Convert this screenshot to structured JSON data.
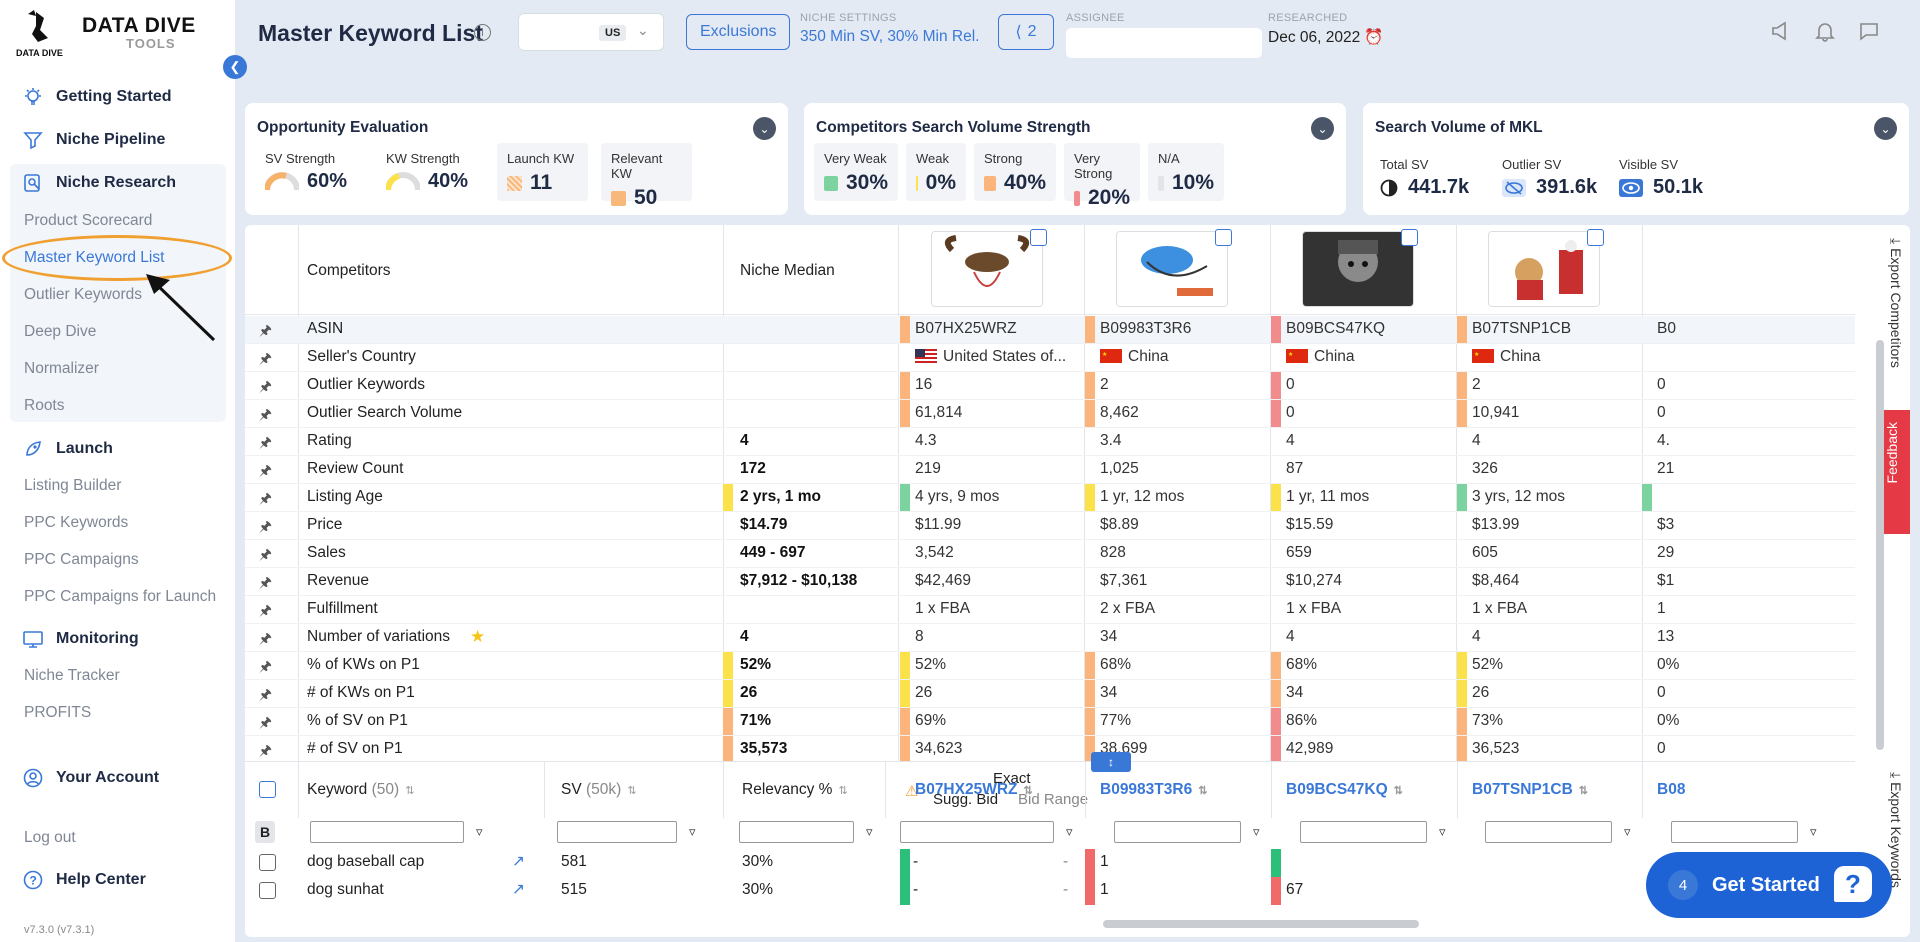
{
  "logo": {
    "line1": "DATA DIVE",
    "line2": "TOOLS"
  },
  "nav": {
    "getting_started": "Getting Started",
    "niche_pipeline": "Niche Pipeline",
    "niche_research": "Niche Research",
    "research_items": [
      "Product Scorecard",
      "Master Keyword List",
      "Outlier Keywords",
      "Deep Dive",
      "Normalizer",
      "Roots"
    ],
    "launch": "Launch",
    "launch_items": [
      "Listing Builder",
      "PPC Keywords",
      "PPC Campaigns",
      "PPC Campaigns for Launch"
    ],
    "monitoring": "Monitoring",
    "monitoring_items": [
      "Niche Tracker",
      "PROFITS"
    ],
    "your_account": "Your Account",
    "log_out": "Log out",
    "help_center": "Help Center",
    "version": "v7.3.0 (v7.3.1)"
  },
  "topbar": {
    "title": "Master Keyword List",
    "marketplace": "US",
    "exclusions": "Exclusions",
    "niche_settings_cap": "NICHE SETTINGS",
    "niche_settings_val": "350 Min SV, 30% Min Rel.",
    "share_count": "2",
    "assignee_cap": "ASSIGNEE",
    "researched_cap": "RESEARCHED",
    "researched_val": "Dec 06, 2022"
  },
  "opportunity": {
    "title": "Opportunity Evaluation",
    "sv_label": "SV Strength",
    "sv_val": "60%",
    "kw_label": "KW Strength",
    "kw_val": "40%",
    "launch_label": "Launch KW",
    "launch_val": "11",
    "relevant_label": "Relevant KW",
    "relevant_val": "50"
  },
  "competitors_sv": {
    "title": "Competitors Search Volume Strength",
    "tiles": [
      {
        "label": "Very Weak",
        "val": "30%",
        "color": "#7dd3a0"
      },
      {
        "label": "Weak",
        "val": "0%",
        "color": "#fbe24a"
      },
      {
        "label": "Strong",
        "val": "40%",
        "color": "#fbb57c"
      },
      {
        "label": "Very Strong",
        "val": "20%",
        "color": "#f28b8b"
      },
      {
        "label": "N/A",
        "val": "10%",
        "color": "#e2e4e8"
      }
    ]
  },
  "mkl_sv": {
    "title": "Search Volume of MKL",
    "total_label": "Total SV",
    "total_val": "441.7k",
    "outlier_label": "Outlier SV",
    "outlier_val": "391.6k",
    "visible_label": "Visible SV",
    "visible_val": "50.1k"
  },
  "table": {
    "competitors_header": "Competitors",
    "median_header": "Niche Median",
    "rows": [
      {
        "name": "ASIN",
        "median": "",
        "cells": [
          "B07HX25WRZ",
          "B09983T3R6",
          "B09BCS47KQ",
          "B07TSNP1CB",
          "B0"
        ]
      },
      {
        "name": "Seller's Country",
        "median": "",
        "cells": [
          "United States of...",
          "China",
          "China",
          "China",
          ""
        ]
      },
      {
        "name": "Outlier Keywords",
        "median": "",
        "cells": [
          "16",
          "2",
          "0",
          "2",
          "0"
        ]
      },
      {
        "name": "Outlier Search Volume",
        "median": "",
        "cells": [
          "61,814",
          "8,462",
          "0",
          "10,941",
          "0"
        ]
      },
      {
        "name": "Rating",
        "median": "4",
        "cells": [
          "4.3",
          "3.4",
          "4",
          "4",
          "4."
        ]
      },
      {
        "name": "Review Count",
        "median": "172",
        "cells": [
          "219",
          "1,025",
          "87",
          "326",
          "21"
        ]
      },
      {
        "name": "Listing Age",
        "median": "2 yrs, 1 mo",
        "cells": [
          "4 yrs, 9 mos",
          "1 yr, 12 mos",
          "1 yr, 11 mos",
          "3 yrs, 12 mos",
          ""
        ]
      },
      {
        "name": "Price",
        "median": "$14.79",
        "cells": [
          "$11.99",
          "$8.89",
          "$15.59",
          "$13.99",
          "$3"
        ]
      },
      {
        "name": "Sales",
        "median": "449 - 697",
        "cells": [
          "3,542",
          "828",
          "659",
          "605",
          "29"
        ]
      },
      {
        "name": "Revenue",
        "median": "$7,912 - $10,138",
        "cells": [
          "$42,469",
          "$7,361",
          "$10,274",
          "$8,464",
          "$1"
        ]
      },
      {
        "name": "Fulfillment",
        "median": "",
        "cells": [
          "1 x FBA",
          "2 x FBA",
          "1 x FBA",
          "1 x FBA",
          "1"
        ]
      },
      {
        "name": "Number of variations",
        "median": "4",
        "cells": [
          "8",
          "34",
          "4",
          "4",
          "13"
        ]
      },
      {
        "name": "% of KWs on P1",
        "median": "52%",
        "cells": [
          "52%",
          "68%",
          "68%",
          "52%",
          "0%"
        ]
      },
      {
        "name": "# of KWs on P1",
        "median": "26",
        "cells": [
          "26",
          "34",
          "34",
          "26",
          "0"
        ]
      },
      {
        "name": "% of SV on P1",
        "median": "71%",
        "cells": [
          "69%",
          "77%",
          "86%",
          "73%",
          "0%"
        ]
      },
      {
        "name": "# of SV on P1",
        "median": "35,573",
        "cells": [
          "34,623",
          "38,699",
          "42,989",
          "36,523",
          "0"
        ]
      }
    ]
  },
  "keywords": {
    "kw_header": "Keyword",
    "kw_count": "(50)",
    "sv_header": "SV",
    "sv_total": "(50k)",
    "rel_header": "Relevancy %",
    "exact": "Exact",
    "sugg_bid": "Sugg. Bid",
    "bid_range": "Bid Range",
    "asins": [
      "B07HX25WRZ",
      "B09983T3R6",
      "B09BCS47KQ",
      "B07TSNP1CB",
      "B08"
    ],
    "b_label": "B",
    "rows": [
      {
        "kw": "dog baseball cap",
        "sv": "581",
        "rel": "30%",
        "bid": "-",
        "range": "-",
        "c": [
          "",
          "1",
          "",
          "",
          ""
        ]
      },
      {
        "kw": "dog sunhat",
        "sv": "515",
        "rel": "30%",
        "bid": "-",
        "range": "-",
        "c": [
          "",
          "1",
          "67",
          "",
          ""
        ]
      }
    ]
  },
  "side": {
    "export_competitors": "Export Competitors",
    "export_keywords": "Export Keywords",
    "feedback": "Feedback"
  },
  "fab": {
    "count": "4",
    "label": "Get Started"
  }
}
